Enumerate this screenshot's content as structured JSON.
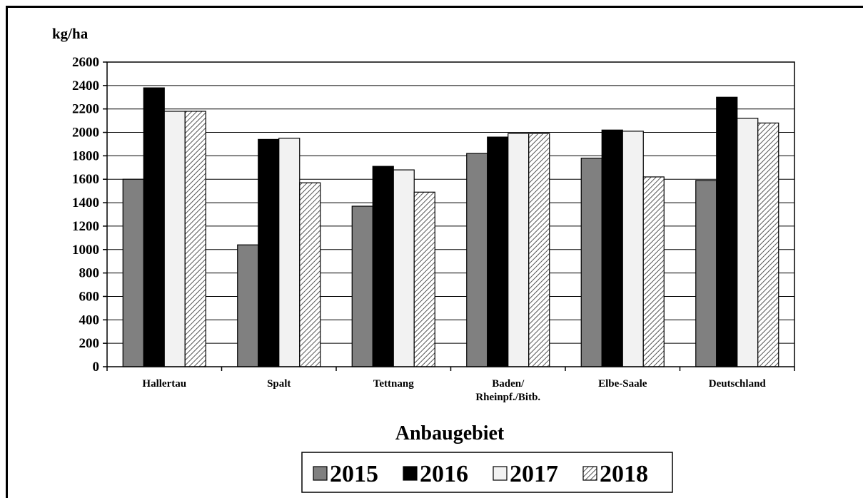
{
  "chart_data": {
    "type": "bar",
    "ylabel": "kg/ha",
    "xlabel": "Anbaugebiet",
    "categories": [
      "Hallertau",
      "Spalt",
      "Tettnang",
      "Baden/\nRheinpf./Bitb.",
      "Elbe-Saale",
      "Deutschland"
    ],
    "ylim": [
      0,
      2600
    ],
    "yticks": [
      0,
      200,
      400,
      600,
      800,
      1000,
      1200,
      1400,
      1600,
      1800,
      2000,
      2200,
      2400,
      2600
    ],
    "grid": true,
    "legend_position": "bottom",
    "series": [
      {
        "name": "2015",
        "color": "#808080",
        "pattern": "solid",
        "values": [
          1600,
          1040,
          1370,
          1820,
          1780,
          1590
        ]
      },
      {
        "name": "2016",
        "color": "#000000",
        "pattern": "solid",
        "values": [
          2380,
          1940,
          1710,
          1960,
          2020,
          2300
        ]
      },
      {
        "name": "2017",
        "color": "#f2f2f2",
        "pattern": "solid",
        "values": [
          2180,
          1950,
          1680,
          1990,
          2010,
          2120
        ]
      },
      {
        "name": "2018",
        "color": "#ffffff",
        "pattern": "hatch",
        "values": [
          2180,
          1570,
          1490,
          1990,
          1620,
          2080
        ]
      }
    ]
  }
}
